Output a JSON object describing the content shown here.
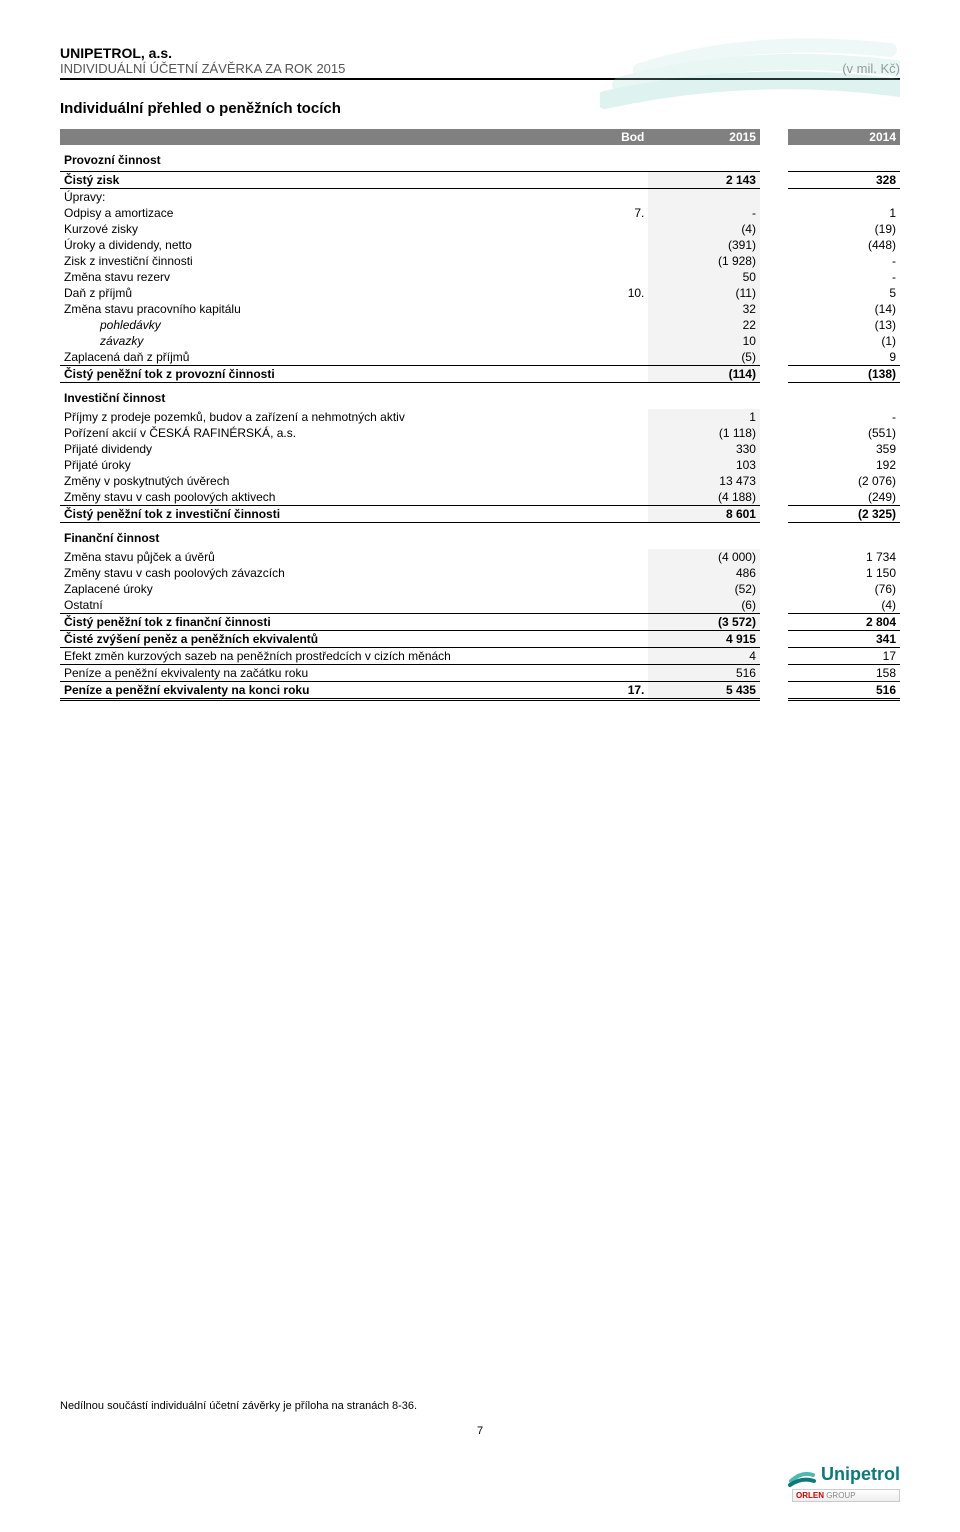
{
  "header": {
    "company": "UNIPETROL, a.s.",
    "subtitle": "INDIVIDUÁLNÍ ÚČETNÍ ZÁVĚRKA ZA ROK 2015",
    "unit": "(v mil. Kč)"
  },
  "title": "Individuální přehled o peněžních tocích",
  "cols": {
    "bod": "Bod",
    "y2015": "2015",
    "y2014": "2014"
  },
  "rows": [
    {
      "type": "section",
      "label": "Provozní činnost"
    },
    {
      "type": "boldline-top",
      "label": "Čistý zisk",
      "bod": "",
      "v15": "2 143",
      "v14": "328"
    },
    {
      "label": "Úpravy:",
      "bod": "",
      "v15": "",
      "v14": ""
    },
    {
      "label": "Odpisy a amortizace",
      "bod": "7.",
      "v15": "-",
      "v14": "1"
    },
    {
      "label": "Kurzové zisky",
      "bod": "",
      "v15": "(4)",
      "v14": "(19)"
    },
    {
      "label": "Úroky a dividendy, netto",
      "bod": "",
      "v15": "(391)",
      "v14": "(448)"
    },
    {
      "label": "Zisk z investiční činnosti",
      "bod": "",
      "v15": "(1 928)",
      "v14": "-"
    },
    {
      "label": "Změna stavu rezerv",
      "bod": "",
      "v15": "50",
      "v14": "-"
    },
    {
      "label": "Daň z příjmů",
      "bod": "10.",
      "v15": "(11)",
      "v14": "5"
    },
    {
      "label": "Změna stavu pracovního kapitálu",
      "bod": "",
      "v15": "32",
      "v14": "(14)"
    },
    {
      "label": "pohledávky",
      "italic": true,
      "indent": true,
      "bod": "",
      "v15": "22",
      "v14": "(13)"
    },
    {
      "label": "závazky",
      "italic": true,
      "indent": true,
      "bod": "",
      "v15": "10",
      "v14": "(1)"
    },
    {
      "label": "Zaplacená daň z příjmů",
      "bod": "",
      "v15": "(5)",
      "v14": "9",
      "underline": true
    },
    {
      "type": "total",
      "label": "Čistý peněžní tok z provozní činnosti",
      "bod": "",
      "v15": "(114)",
      "v14": "(138)"
    },
    {
      "type": "section",
      "label": "Investiční činnost"
    },
    {
      "label": "Příjmy z prodeje pozemků, budov a zařízení a nehmotných aktiv",
      "bod": "",
      "v15": "1",
      "v14": "-"
    },
    {
      "label": "Pořízení akcií v ČESKÁ RAFINÉRSKÁ, a.s.",
      "bod": "",
      "v15": "(1 118)",
      "v14": "(551)"
    },
    {
      "label": "Přijaté dividendy",
      "bod": "",
      "v15": "330",
      "v14": "359"
    },
    {
      "label": "Přijaté úroky",
      "bod": "",
      "v15": "103",
      "v14": "192"
    },
    {
      "label": "Změny v poskytnutých úvěrech",
      "bod": "",
      "v15": "13 473",
      "v14": "(2 076)"
    },
    {
      "label": "Změny stavu v cash poolových aktivech",
      "bod": "",
      "v15": "(4 188)",
      "v14": "(249)",
      "underline": true
    },
    {
      "type": "total",
      "label": "Čistý peněžní tok z investiční činnosti",
      "bod": "",
      "v15": "8 601",
      "v14": "(2 325)"
    },
    {
      "type": "section",
      "label": "Finanční činnost"
    },
    {
      "label": "Změna stavu půjček a úvěrů",
      "bod": "",
      "v15": "(4 000)",
      "v14": "1 734"
    },
    {
      "label": "Změny stavu v cash poolových závazcích",
      "bod": "",
      "v15": "486",
      "v14": "1 150"
    },
    {
      "label": "Zaplacené úroky",
      "bod": "",
      "v15": "(52)",
      "v14": "(76)"
    },
    {
      "label": "Ostatní",
      "bod": "",
      "v15": "(6)",
      "v14": "(4)",
      "underline": true
    },
    {
      "type": "total",
      "label": "Čistý peněžní tok z finanční činnosti",
      "bod": "",
      "v15": "(3 572)",
      "v14": "2 804"
    },
    {
      "type": "boldline-both",
      "label": "Čisté zvýšení peněz a peněžních ekvivalentů",
      "bod": "",
      "v15": "4 915",
      "v14": "341"
    },
    {
      "label": "Efekt změn kurzových sazeb na peněžních prostředcích v cizích měnách",
      "bod": "",
      "v15": "4",
      "v14": "17",
      "underline": true
    },
    {
      "label": "Peníze a peněžní ekvivalenty na začátku roku",
      "bod": "",
      "v15": "516",
      "v14": "158",
      "underline": true
    },
    {
      "type": "grand",
      "label": "Peníze a peněžní ekvivalenty na konci roku",
      "bod": "17.",
      "v15": "5 435",
      "v14": "516"
    }
  ],
  "footer": {
    "note": "Nedílnou součástí individuální účetní závěrky je příloha na stranách 8-36.",
    "page": "7",
    "logo_text": "Unipetrol",
    "orlen": "ORLEN GROUP"
  },
  "colors": {
    "header_bg": "#808080",
    "col_bg": "#f3f3f3",
    "teal": "#4fb9b0",
    "teal_light": "#a8dcd7"
  }
}
